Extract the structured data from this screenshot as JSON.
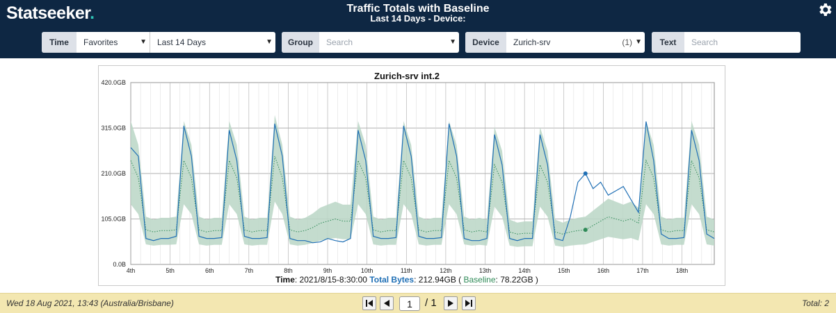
{
  "app": {
    "logo_text": "Statseeker",
    "logo_dot": "."
  },
  "header": {
    "title": "Traffic Totals with Baseline",
    "subtitle": "Last 14 Days - Device:"
  },
  "icons": {
    "settings": "gear-icon",
    "dropdown": "caret-down-icon",
    "first": "first-page-icon",
    "prev": "prev-page-icon",
    "next": "next-page-icon",
    "last": "last-page-icon"
  },
  "filters": {
    "time": {
      "label": "Time",
      "favorites": "Favorites",
      "range": "Last 14 Days"
    },
    "group": {
      "label": "Group",
      "placeholder": "Search"
    },
    "device": {
      "label": "Device",
      "value": "Zurich-srv",
      "count": "(1)"
    },
    "text": {
      "label": "Text",
      "placeholder": "Search"
    }
  },
  "colors": {
    "header_bg": "#0e2743",
    "total_bytes": "#1f6fb5",
    "baseline": "#2e8a57",
    "band": "#bad6c6",
    "footer_bg": "#f3e7b1"
  },
  "chart_data": {
    "type": "line",
    "title": "Zurich-srv int.2",
    "y_ticks": [
      "0.0B",
      "105.0GB",
      "210.0GB",
      "315.0GB",
      "420.0GB"
    ],
    "ylim": [
      0,
      420
    ],
    "x_ticks": [
      "4th",
      "5th",
      "6th",
      "7th",
      "8th",
      "9th",
      "10th",
      "11th",
      "12th",
      "13th",
      "14th",
      "15th",
      "16th",
      "17th",
      "18th"
    ],
    "grid": true,
    "series": [
      {
        "values": [
          270,
          250,
          60,
          55,
          60,
          60,
          65,
          320,
          250,
          65,
          60,
          60,
          62,
          310,
          240,
          65,
          60,
          60,
          62,
          325,
          250,
          60,
          55,
          55,
          50,
          52,
          60,
          55,
          52,
          60,
          310,
          240,
          65,
          60,
          60,
          62,
          320,
          250,
          65,
          60,
          60,
          62,
          325,
          250,
          60,
          55,
          55,
          60,
          300,
          230,
          60,
          55,
          60,
          60,
          300,
          230,
          60,
          55,
          110,
          190,
          210,
          175,
          190,
          160,
          170,
          180,
          150,
          120,
          330,
          240,
          70,
          60,
          60,
          62,
          310,
          240,
          70,
          60
        ]
      },
      {
        "values": [
          240,
          200,
          80,
          75,
          78,
          78,
          80,
          240,
          200,
          80,
          75,
          78,
          78,
          240,
          200,
          80,
          75,
          78,
          78,
          250,
          200,
          80,
          75,
          78,
          85,
          95,
          100,
          105,
          100,
          100,
          240,
          200,
          80,
          75,
          78,
          78,
          240,
          200,
          80,
          75,
          78,
          78,
          240,
          200,
          80,
          75,
          78,
          75,
          230,
          190,
          75,
          70,
          72,
          72,
          230,
          190,
          75,
          70,
          75,
          78,
          80,
          90,
          100,
          110,
          105,
          100,
          105,
          95,
          240,
          200,
          80,
          75,
          78,
          78,
          240,
          200,
          80,
          75
        ]
      }
    ],
    "readout": {
      "time_label": "Time",
      "time_value": "2021/8/15-8:30:00",
      "total_label": "Total Bytes",
      "total_value": "212.94GB",
      "baseline_label": "Baseline",
      "baseline_value": "78.22GB"
    }
  },
  "footer": {
    "datetime": "Wed 18 Aug 2021, 13:43 (Australia/Brisbane)",
    "page_value": "1",
    "page_of": "/ 1",
    "total": "Total: 2"
  }
}
